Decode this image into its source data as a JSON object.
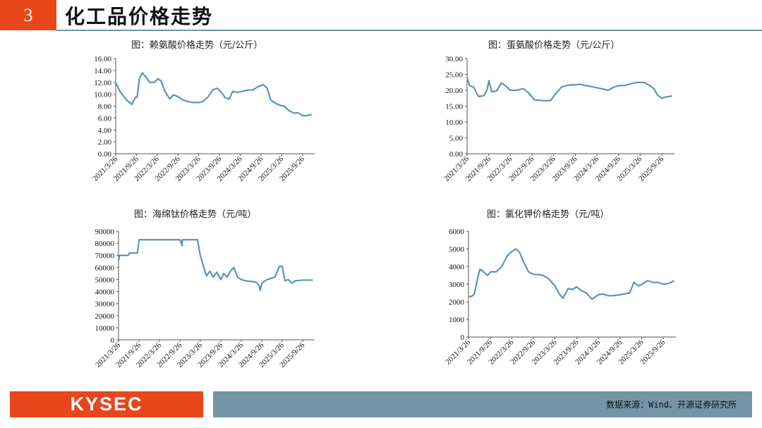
{
  "header": {
    "section_number": "3",
    "title": "化工品价格走势",
    "accent_color": "#e8471c",
    "line_color": "#6f94a8"
  },
  "footer": {
    "logo_text": "KYSEC",
    "source": "数据来源：Wind、开源证券研究所",
    "bar_color": "#7395a8"
  },
  "series_color": "#5b94bd",
  "chart_data": [
    {
      "type": "line",
      "title": "图：赖氨酸价格走势（元/公斤）",
      "x_ticks": [
        "2021/3/26",
        "2021/9/26",
        "2022/3/26",
        "2022/9/26",
        "2023/3/26",
        "2023/9/26",
        "2024/3/26",
        "2024/9/26",
        "2025/3/26",
        "2025/9/26"
      ],
      "y_ticks": [
        "0.00",
        "2.00",
        "4.00",
        "6.00",
        "8.00",
        "10.00",
        "12.00",
        "14.00",
        "16.00"
      ],
      "ylim": [
        0,
        16
      ],
      "series": [
        {
          "x": [
            "2021/3/26",
            "2021/5/1",
            "2021/7/1",
            "2021/8/15",
            "2021/9/15",
            "2021/10/1",
            "2021/10/20",
            "2021/11/15",
            "2021/12/20",
            "2022/1/20",
            "2022/3/1",
            "2022/4/1",
            "2022/5/1",
            "2022/6/1",
            "2022/7/15",
            "2022/8/15",
            "2022/9/26",
            "2022/11/1",
            "2022/12/15",
            "2023/2/1",
            "2023/3/26",
            "2023/5/1",
            "2023/6/15",
            "2023/8/1",
            "2023/9/10",
            "2023/10/15",
            "2023/11/15",
            "2023/12/20",
            "2024/1/20",
            "2024/3/1",
            "2024/4/15",
            "2024/6/1",
            "2024/7/15",
            "2024/9/1",
            "2024/10/15",
            "2024/11/15",
            "2024/12/20",
            "2025/1/20",
            "2025/3/1",
            "2025/4/15",
            "2025/6/1",
            "2025/7/15",
            "2025/8/15",
            "2025/9/26",
            "2025/11/1",
            "2025/12/15"
          ],
          "values": [
            12.0,
            10.5,
            9.0,
            8.3,
            9.5,
            9.5,
            12.6,
            13.6,
            12.8,
            12.0,
            12.0,
            12.6,
            12.2,
            10.5,
            9.2,
            9.9,
            9.6,
            9.1,
            8.8,
            8.6,
            8.6,
            8.8,
            9.5,
            10.8,
            11.0,
            10.2,
            9.4,
            9.2,
            10.5,
            10.3,
            10.5,
            10.7,
            10.7,
            11.3,
            11.6,
            11.1,
            9.0,
            8.6,
            8.2,
            8.0,
            7.2,
            6.8,
            6.9,
            6.4,
            6.4,
            6.6
          ]
        }
      ]
    },
    {
      "type": "line",
      "title": "图：蛋氨酸价格走势（元/公斤）",
      "x_ticks": [
        "2021/3/26",
        "2021/9/26",
        "2022/3/26",
        "2022/9/26",
        "2023/3/26",
        "2023/9/26",
        "2024/3/26",
        "2024/9/26",
        "2025/3/26",
        "2025/9/26"
      ],
      "y_ticks": [
        "0.00",
        "5.00",
        "10.00",
        "15.00",
        "20.00",
        "25.00",
        "30.00"
      ],
      "ylim": [
        0,
        30
      ],
      "series": [
        {
          "x": [
            "2021/3/26",
            "2021/4/15",
            "2021/5/20",
            "2021/7/1",
            "2021/8/15",
            "2021/9/10",
            "2021/9/26",
            "2021/10/20",
            "2021/12/1",
            "2022/1/10",
            "2022/2/10",
            "2022/3/26",
            "2022/5/15",
            "2022/7/15",
            "2022/9/1",
            "2022/10/15",
            "2022/12/1",
            "2023/1/15",
            "2023/3/1",
            "2023/4/15",
            "2023/6/1",
            "2023/7/15",
            "2023/8/20",
            "2023/9/26",
            "2023/11/1",
            "2023/12/15",
            "2024/2/1",
            "2024/3/26",
            "2024/5/15",
            "2024/7/1",
            "2024/8/15",
            "2024/10/1",
            "2024/11/15",
            "2025/1/1",
            "2025/2/15",
            "2025/3/26",
            "2025/5/1",
            "2025/6/15",
            "2025/7/20",
            "2025/8/20",
            "2025/9/26",
            "2025/10/20",
            "2025/11/20",
            "2025/12/20"
          ],
          "values": [
            24.0,
            21.5,
            21.0,
            18.0,
            18.3,
            20.0,
            23.0,
            19.5,
            19.8,
            22.3,
            21.5,
            20.0,
            20.0,
            20.5,
            19.0,
            17.0,
            16.8,
            16.7,
            16.8,
            19.0,
            21.0,
            21.5,
            21.7,
            21.7,
            21.9,
            21.5,
            21.2,
            20.8,
            20.4,
            20.0,
            21.0,
            21.5,
            21.5,
            22.0,
            22.4,
            22.5,
            22.4,
            21.5,
            20.5,
            18.5,
            17.5,
            17.8,
            18.0,
            18.2
          ]
        }
      ]
    },
    {
      "type": "line",
      "title": "图：海绵钛价格走势（元/吨）",
      "x_ticks": [
        "2021/3/26",
        "2021/9/26",
        "2022/3/26",
        "2022/9/26",
        "2023/3/26",
        "2023/9/26",
        "2024/3/26",
        "2024/9/26",
        "2025/3/26",
        "2025/9/26"
      ],
      "y_ticks": [
        "0",
        "10000",
        "20000",
        "30000",
        "40000",
        "50000",
        "60000",
        "70000",
        "80000",
        "90000"
      ],
      "ylim": [
        0,
        90000
      ],
      "series": [
        {
          "x": [
            "2021/3/26",
            "2021/4/5",
            "2021/4/15",
            "2021/6/20",
            "2021/7/1",
            "2021/9/10",
            "2021/9/26",
            "2021/12/31",
            "2022/6/30",
            "2022/9/26",
            "2022/10/15",
            "2022/10/16",
            "2022/12/31",
            "2023/2/15",
            "2023/3/1",
            "2023/3/26",
            "2023/4/20",
            "2023/5/20",
            "2023/6/20",
            "2023/7/20",
            "2023/8/20",
            "2023/9/26",
            "2023/10/20",
            "2023/11/20",
            "2023/12/20",
            "2024/1/20",
            "2024/2/20",
            "2024/3/26",
            "2024/5/1",
            "2024/6/15",
            "2024/8/1",
            "2024/9/1",
            "2024/9/10",
            "2024/9/26",
            "2024/11/1",
            "2024/12/15",
            "2025/1/20",
            "2025/3/1",
            "2025/3/26",
            "2025/4/20",
            "2025/5/20",
            "2025/6/20",
            "2025/7/20",
            "2025/9/26",
            "2025/12/25"
          ],
          "values": [
            66000,
            70000,
            70000,
            70000,
            72000,
            72000,
            83000,
            83000,
            83000,
            83000,
            78000,
            83000,
            83000,
            83000,
            83000,
            70000,
            62000,
            53000,
            57000,
            52000,
            56000,
            50000,
            55000,
            52000,
            57000,
            60000,
            52000,
            50000,
            49000,
            48500,
            48000,
            45000,
            41000,
            47000,
            49500,
            51000,
            52000,
            61000,
            61000,
            49000,
            50000,
            47000,
            49000,
            49500,
            49500
          ]
        }
      ]
    },
    {
      "type": "line",
      "title": "图：氯化钾价格走势（元/吨）",
      "x_ticks": [
        "2021/3/26",
        "2021/9/26",
        "2022/3/26",
        "2022/9/26",
        "2023/3/26",
        "2023/9/26",
        "2024/3/26",
        "2024/9/26",
        "2025/3/26",
        "2025/9/26"
      ],
      "y_ticks": [
        "0",
        "1000",
        "2000",
        "3000",
        "4000",
        "5000",
        "6000"
      ],
      "ylim": [
        0,
        6000
      ],
      "series": [
        {
          "x": [
            "2021/3/26",
            "2021/4/20",
            "2021/5/15",
            "2021/6/10",
            "2021/7/1",
            "2021/8/1",
            "2021/9/1",
            "2021/10/1",
            "2021/11/15",
            "2022/1/1",
            "2022/2/15",
            "2022/3/26",
            "2022/5/1",
            "2022/6/1",
            "2022/7/1",
            "2022/8/15",
            "2022/9/26",
            "2022/11/1",
            "2022/12/15",
            "2023/2/1",
            "2023/3/26",
            "2023/5/1",
            "2023/6/1",
            "2023/7/15",
            "2023/8/20",
            "2023/9/26",
            "2023/11/1",
            "2023/12/15",
            "2024/2/1",
            "2024/3/26",
            "2024/5/1",
            "2024/6/15",
            "2024/8/1",
            "2024/9/26",
            "2024/11/1",
            "2024/12/15",
            "2025/1/20",
            "2025/3/1",
            "2025/4/1",
            "2025/5/15",
            "2025/7/1",
            "2025/8/15",
            "2025/9/26",
            "2025/11/15",
            "2025/12/25"
          ],
          "values": [
            2300,
            2300,
            2450,
            3300,
            3850,
            3700,
            3500,
            3700,
            3700,
            4000,
            4600,
            4850,
            5000,
            4800,
            4300,
            3700,
            3550,
            3550,
            3500,
            3300,
            2900,
            2450,
            2200,
            2750,
            2700,
            2850,
            2650,
            2500,
            2150,
            2400,
            2450,
            2350,
            2350,
            2400,
            2450,
            2500,
            3100,
            2900,
            3000,
            3200,
            3100,
            3100,
            3000,
            3050,
            3200
          ]
        }
      ]
    }
  ]
}
